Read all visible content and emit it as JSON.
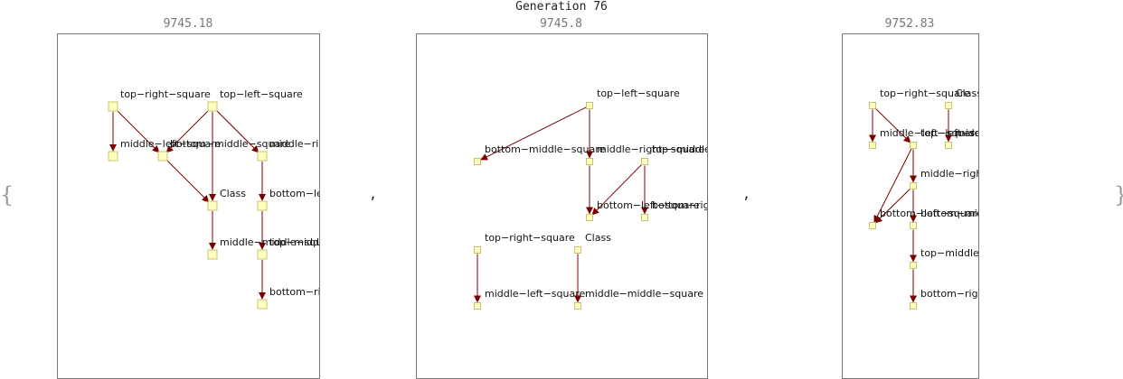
{
  "generation_title": "Generation 76",
  "open_brace": "{",
  "close_brace": "}",
  "separator": ",",
  "panels": [
    {
      "score": "9745.18",
      "nodes": [
        {
          "id": "trs",
          "label": "top−right−square"
        },
        {
          "id": "tls",
          "label": "top−left−square"
        },
        {
          "id": "mls",
          "label": "middle−left−square"
        },
        {
          "id": "bms",
          "label": "bottom−middle−square"
        },
        {
          "id": "mrs",
          "label": "middle−right−square"
        },
        {
          "id": "cls",
          "label": "Class"
        },
        {
          "id": "bls",
          "label": "bottom−left−square"
        },
        {
          "id": "mms",
          "label": "middle−middle−square"
        },
        {
          "id": "tms",
          "label": "top−middle−square"
        },
        {
          "id": "brs",
          "label": "bottom−right−square"
        }
      ],
      "edges": [
        [
          "trs",
          "mls"
        ],
        [
          "trs",
          "bms"
        ],
        [
          "tls",
          "bms"
        ],
        [
          "tls",
          "cls"
        ],
        [
          "tls",
          "mrs"
        ],
        [
          "bms",
          "cls"
        ],
        [
          "mrs",
          "bls"
        ],
        [
          "cls",
          "mms"
        ],
        [
          "bls",
          "tms"
        ],
        [
          "tms",
          "brs"
        ]
      ]
    },
    {
      "score": "9745.8",
      "nodes": [
        {
          "id": "tls",
          "label": "top−left−square"
        },
        {
          "id": "bms",
          "label": "bottom−middle−square"
        },
        {
          "id": "mrs",
          "label": "middle−right−square"
        },
        {
          "id": "tms",
          "label": "top−middle−square"
        },
        {
          "id": "bls",
          "label": "bottom−left−square"
        },
        {
          "id": "brs",
          "label": "bottom−right−square"
        },
        {
          "id": "trs",
          "label": "top−right−square"
        },
        {
          "id": "cls",
          "label": "Class"
        },
        {
          "id": "mls",
          "label": "middle−left−square"
        },
        {
          "id": "mms",
          "label": "middle−middle−square"
        }
      ],
      "edges": [
        [
          "tls",
          "bms"
        ],
        [
          "tls",
          "mrs"
        ],
        [
          "mrs",
          "bls"
        ],
        [
          "tms",
          "bls"
        ],
        [
          "tms",
          "brs"
        ],
        [
          "trs",
          "mls"
        ],
        [
          "cls",
          "mms"
        ]
      ]
    },
    {
      "score": "9752.83",
      "nodes": [
        {
          "id": "trs",
          "label": "top−right−square"
        },
        {
          "id": "cls",
          "label": "Class"
        },
        {
          "id": "mls",
          "label": "middle−left−square"
        },
        {
          "id": "tls",
          "label": "top−left−square"
        },
        {
          "id": "mms",
          "label": "middle−middle−square"
        },
        {
          "id": "mrs",
          "label": "middle−right−square"
        },
        {
          "id": "bms",
          "label": "bottom−middle−square"
        },
        {
          "id": "bls",
          "label": "bottom−left−square"
        },
        {
          "id": "tms",
          "label": "top−middle−square"
        },
        {
          "id": "brs",
          "label": "bottom−right−square"
        }
      ],
      "edges": [
        [
          "trs",
          "mls"
        ],
        [
          "trs",
          "tls"
        ],
        [
          "cls",
          "mms"
        ],
        [
          "tls",
          "bls"
        ],
        [
          "tls",
          "mrs"
        ],
        [
          "mrs",
          "bls"
        ],
        [
          "mrs",
          "bms"
        ],
        [
          "bms",
          "tms"
        ],
        [
          "tms",
          "brs"
        ]
      ]
    }
  ]
}
